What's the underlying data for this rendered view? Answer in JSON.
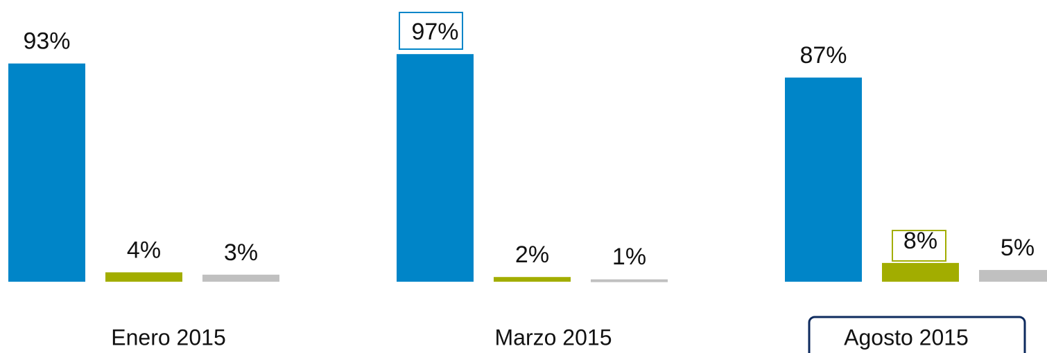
{
  "chart_data": {
    "type": "bar",
    "categories": [
      "Enero 2015",
      "Marzo 2015",
      "Agosto 2015"
    ],
    "series": [
      {
        "color": "#0085c8",
        "values": [
          93,
          97,
          87
        ],
        "value_labels": [
          "93%",
          "97%",
          "87%"
        ]
      },
      {
        "color": "#a2ad00",
        "values": [
          4,
          2,
          8
        ],
        "value_labels": [
          "4%",
          "2%",
          "8%"
        ]
      },
      {
        "color": "#c0c0c0",
        "values": [
          3,
          1,
          5
        ],
        "value_labels": [
          "3%",
          "1%",
          "5%"
        ]
      }
    ],
    "ylim": [
      0,
      100
    ]
  }
}
